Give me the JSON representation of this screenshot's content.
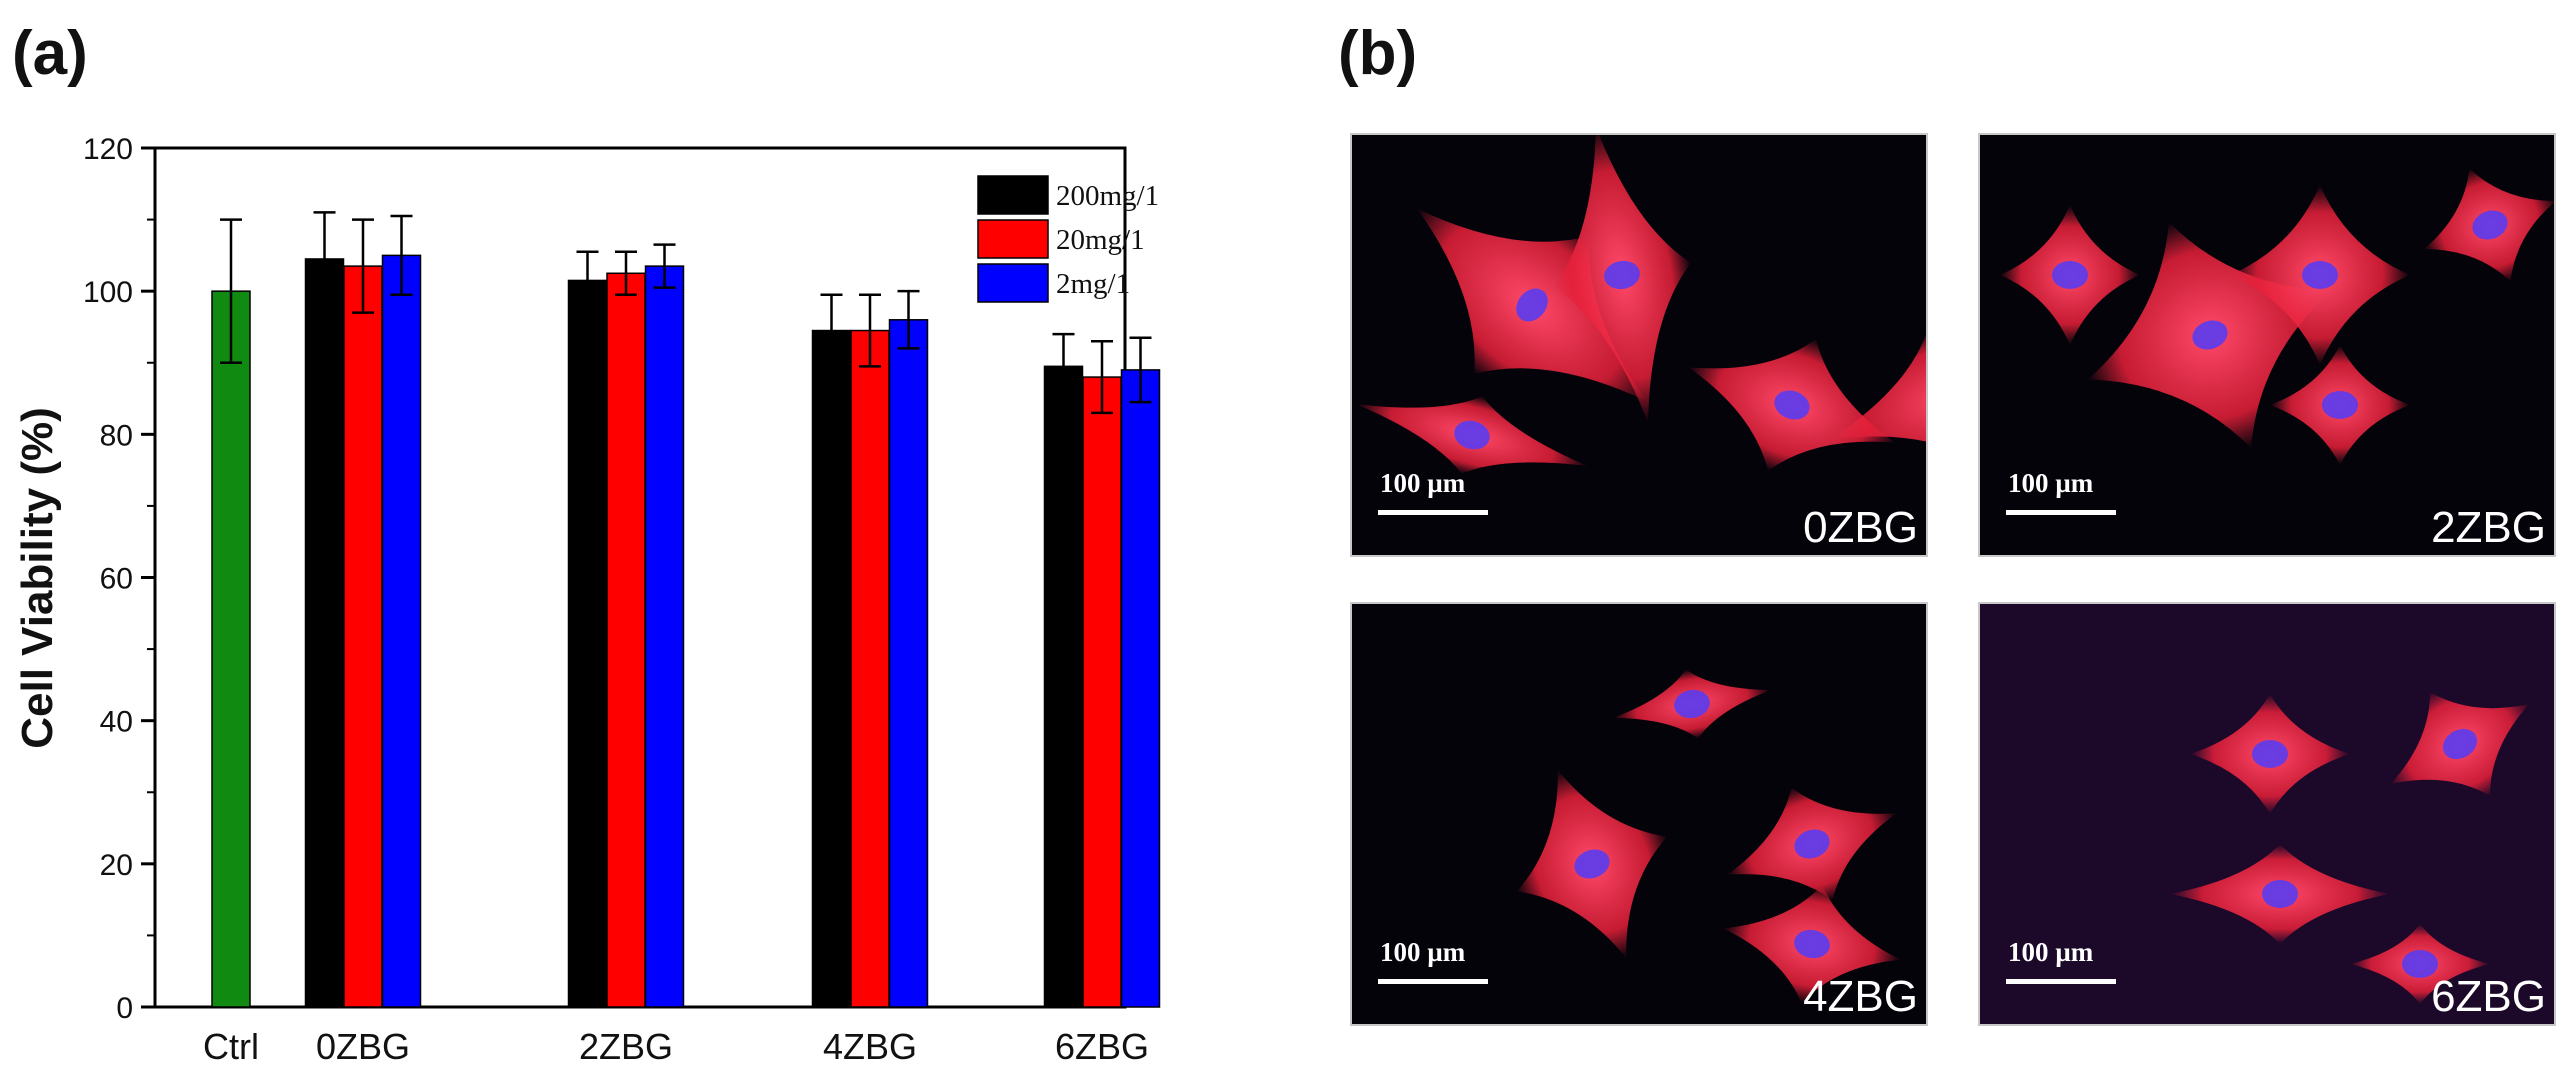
{
  "panels": {
    "a": "(a)",
    "b": "(b)"
  },
  "chart_data": {
    "type": "bar",
    "ylabel": "Cell Viability (%)",
    "xlabel": "",
    "ylim": [
      0,
      120
    ],
    "yticks": [
      0,
      20,
      40,
      60,
      80,
      100,
      120
    ],
    "control": {
      "category": "Ctrl",
      "value": 100,
      "error": 10,
      "color": "#108a10"
    },
    "categories": [
      "0ZBG",
      "2ZBG",
      "4ZBG",
      "6ZBG"
    ],
    "series": [
      {
        "name": "200mg/1",
        "color": "#000000",
        "values": [
          104.5,
          101.5,
          94.5,
          89.5
        ],
        "errors": [
          6.5,
          4,
          5,
          4.5
        ]
      },
      {
        "name": "20mg/1",
        "color": "#ff0000",
        "values": [
          103.5,
          102.5,
          94.5,
          88
        ],
        "errors": [
          6.5,
          3,
          5,
          5
        ]
      },
      {
        "name": "2mg/1",
        "color": "#0000ff",
        "values": [
          105,
          103.5,
          96,
          89
        ],
        "errors": [
          5.5,
          3,
          4,
          4.5
        ]
      }
    ],
    "legend_position": "top-right",
    "grid": false
  },
  "micrographs": [
    {
      "label": "0ZBG",
      "scale": "100 µm"
    },
    {
      "label": "2ZBG",
      "scale": "100 µm"
    },
    {
      "label": "4ZBG",
      "scale": "100 µm"
    },
    {
      "label": "6ZBG",
      "scale": "100 µm"
    }
  ],
  "colors": {
    "actin": "#e8203a",
    "nucleus": "#5a3cf0",
    "background": "#05030a"
  }
}
